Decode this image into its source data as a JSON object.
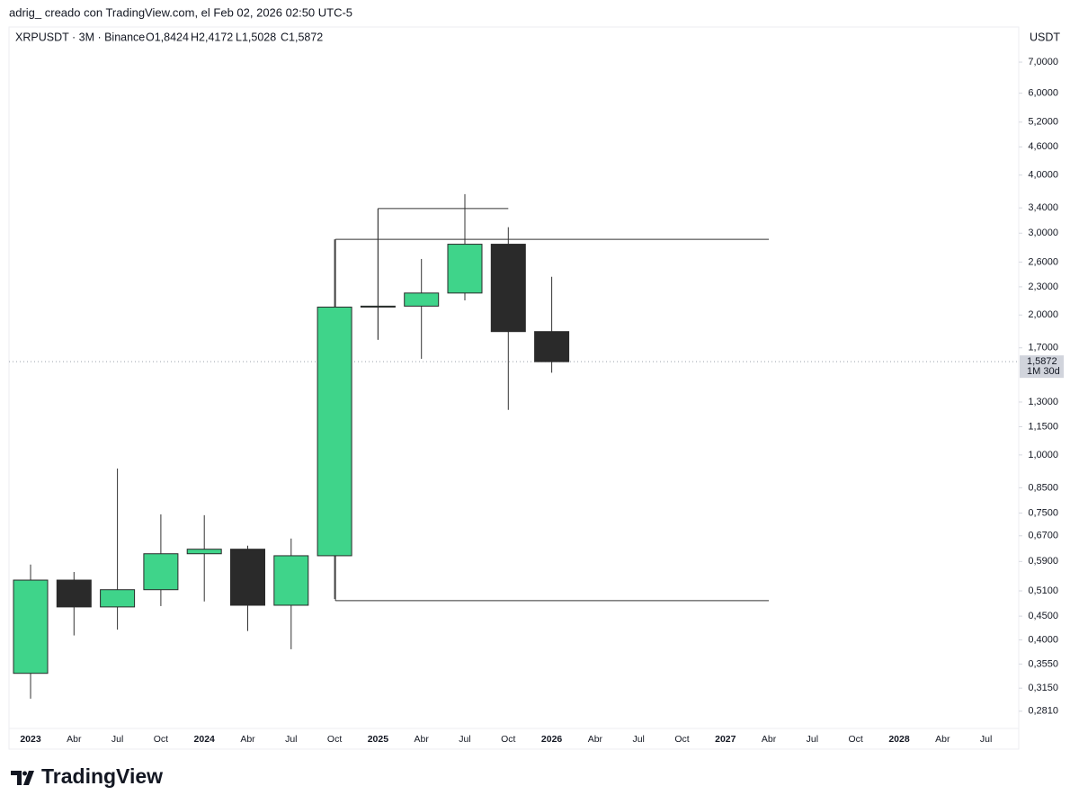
{
  "caption": "adrig_ creado con TradingView.com, el Feb 02, 2026 02:50 UTC-5",
  "footer": "TradingView",
  "chart_data": {
    "type": "candlestick",
    "title": "XRPUSDT · 3M · Binance",
    "ohlc_legend": [
      "O1,8424",
      "H2,4172",
      "L1,5028",
      "C1,5872"
    ],
    "y_axis_label": "USDT",
    "log_scale": true,
    "categories": [
      "2023",
      "Abr",
      "Jul",
      "Oct",
      "2024",
      "Abr",
      "Jul",
      "Oct",
      "2025",
      "Abr",
      "Jul",
      "Oct",
      "2026",
      "Abr",
      "Jul",
      "Oct",
      "2027",
      "Abr",
      "Jul",
      "Oct",
      "2028",
      "Abr",
      "Jul"
    ],
    "open": [
      0.339,
      0.538,
      0.471,
      0.513,
      0.613,
      0.627,
      0.475,
      0.607,
      2.08,
      2.09,
      2.23,
      2.84,
      1.8424,
      null,
      null,
      null,
      null,
      null,
      null,
      null,
      null,
      null,
      null
    ],
    "high": [
      0.581,
      0.56,
      0.935,
      0.745,
      0.742,
      0.638,
      0.661,
      2.91,
      3.39,
      2.64,
      3.64,
      3.09,
      2.4172,
      null,
      null,
      null,
      null,
      null,
      null,
      null,
      null,
      null,
      null
    ],
    "low": [
      0.299,
      0.409,
      0.421,
      0.473,
      0.484,
      0.418,
      0.382,
      0.49,
      1.77,
      1.61,
      2.15,
      1.25,
      1.5028,
      null,
      null,
      null,
      null,
      null,
      null,
      null,
      null,
      null,
      null
    ],
    "close": [
      0.538,
      0.471,
      0.513,
      0.613,
      0.627,
      0.475,
      0.607,
      2.08,
      2.09,
      2.23,
      2.84,
      1.8424,
      1.5872,
      null,
      null,
      null,
      null,
      null,
      null,
      null,
      null,
      null,
      null
    ],
    "up_color": "#3fd48a",
    "down_color": "#2a2a2a",
    "ylim": [
      0.258,
      8.33
    ],
    "yticks": [
      {
        "value": 7,
        "label": "7,0000"
      },
      {
        "value": 6,
        "label": "6,0000"
      },
      {
        "value": 5.2,
        "label": "5,2000"
      },
      {
        "value": 4.6,
        "label": "4,6000"
      },
      {
        "value": 4,
        "label": "4,0000"
      },
      {
        "value": 3.4,
        "label": "3,4000"
      },
      {
        "value": 3,
        "label": "3,0000"
      },
      {
        "value": 2.6,
        "label": "2,6000"
      },
      {
        "value": 2.3,
        "label": "2,3000"
      },
      {
        "value": 2,
        "label": "2,0000"
      },
      {
        "value": 1.7,
        "label": "1,7000"
      },
      {
        "value": 1.3,
        "label": "1,3000"
      },
      {
        "value": 1.15,
        "label": "1,1500"
      },
      {
        "value": 1,
        "label": "1,0000"
      },
      {
        "value": 0.85,
        "label": "0,8500"
      },
      {
        "value": 0.75,
        "label": "0,7500"
      },
      {
        "value": 0.67,
        "label": "0,6700"
      },
      {
        "value": 0.59,
        "label": "0,5900"
      },
      {
        "value": 0.51,
        "label": "0,5100"
      },
      {
        "value": 0.45,
        "label": "0,4500"
      },
      {
        "value": 0.4,
        "label": "0,4000"
      },
      {
        "value": 0.355,
        "label": "0,3550"
      },
      {
        "value": 0.315,
        "label": "0,3150"
      },
      {
        "value": 0.281,
        "label": "0,2810"
      }
    ],
    "last_price": {
      "value": 1.5872,
      "label": "1,5872"
    },
    "countdown": "1M 30d",
    "levels": [
      2.91,
      0.486,
      3.39
    ]
  }
}
